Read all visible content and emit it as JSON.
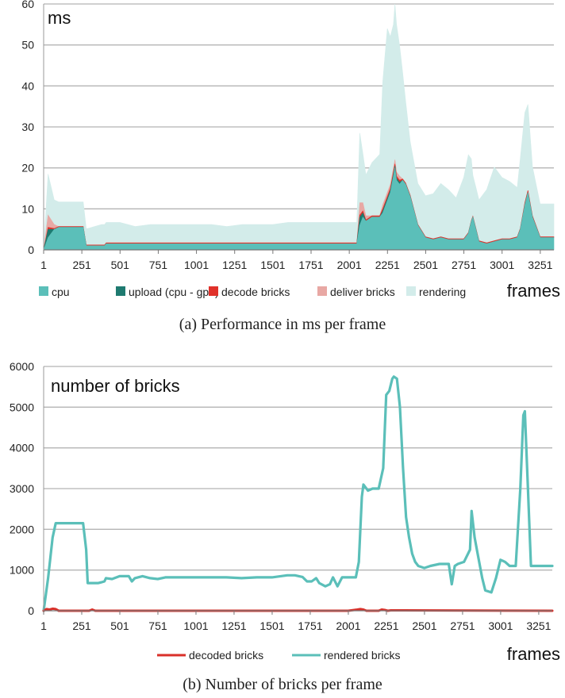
{
  "chart_data": [
    {
      "type": "area",
      "stacked": true,
      "inner_label": "ms",
      "xlabel": "frames",
      "caption": "(a) Performance in ms per frame",
      "x_ticks": [
        "1",
        "251",
        "501",
        "751",
        "1001",
        "1251",
        "1501",
        "1751",
        "2001",
        "2251",
        "2501",
        "2751",
        "3001",
        "3251"
      ],
      "y_ticks": [
        "0",
        "10",
        "20",
        "30",
        "40",
        "50",
        "60"
      ],
      "xlim": [
        1,
        3340
      ],
      "ylim": [
        0,
        60
      ],
      "grid": true,
      "legend_position": "bottom",
      "x": [
        1,
        30,
        70,
        100,
        150,
        200,
        260,
        280,
        290,
        380,
        400,
        410,
        500,
        600,
        700,
        800,
        900,
        1000,
        1100,
        1200,
        1300,
        1400,
        1500,
        1600,
        1700,
        1800,
        1900,
        2000,
        2050,
        2070,
        2090,
        2110,
        2150,
        2200,
        2220,
        2250,
        2270,
        2290,
        2300,
        2310,
        2330,
        2350,
        2370,
        2400,
        2450,
        2500,
        2550,
        2600,
        2650,
        2700,
        2750,
        2780,
        2800,
        2810,
        2830,
        2850,
        2900,
        2950,
        3000,
        3050,
        3100,
        3120,
        3150,
        3170,
        3200,
        3250,
        3300,
        3340
      ],
      "series": [
        {
          "name": "cpu",
          "color": "#5bbfb9",
          "values": [
            0,
            3,
            5,
            5.5,
            5.5,
            5.5,
            5.5,
            1,
            1,
            1,
            1,
            1.5,
            1.5,
            1.5,
            1.5,
            1.5,
            1.5,
            1.5,
            1.5,
            1.5,
            1.5,
            1.5,
            1.5,
            1.5,
            1.5,
            1.5,
            1.5,
            1.5,
            1.5,
            6,
            8,
            7,
            8,
            8,
            9,
            12,
            14,
            18,
            20,
            17,
            16,
            17,
            16,
            13,
            6,
            3,
            2.5,
            3,
            2.5,
            2.5,
            2.5,
            4,
            7,
            8,
            5,
            2,
            1.5,
            2,
            2.5,
            2.5,
            3,
            5,
            11,
            14,
            8,
            3,
            3,
            3
          ]
        },
        {
          "name": "upload (cpu - gpu)",
          "color": "#1e7a70",
          "values": [
            0,
            2,
            0,
            0,
            0,
            0,
            0,
            0,
            0,
            0,
            0,
            0,
            0,
            0,
            0,
            0,
            0,
            0,
            0,
            0,
            0,
            0,
            0,
            0,
            0,
            0,
            0,
            0,
            0,
            2,
            1,
            0,
            0,
            0,
            0.5,
            0.5,
            0.5,
            0.5,
            0.5,
            0.5,
            0.5,
            0,
            0,
            0,
            0,
            0,
            0,
            0,
            0,
            0,
            0,
            0,
            0,
            0,
            0,
            0,
            0,
            0,
            0,
            0,
            0,
            0,
            0,
            0,
            0,
            0,
            0,
            0
          ]
        },
        {
          "name": "decode bricks",
          "color": "#e0312a",
          "values": [
            0,
            0.5,
            0.2,
            0.2,
            0.2,
            0.2,
            0.2,
            0.2,
            0.2,
            0.2,
            0.2,
            0.2,
            0.2,
            0.2,
            0.2,
            0.2,
            0.2,
            0.2,
            0.2,
            0.2,
            0.2,
            0.2,
            0.2,
            0.2,
            0.2,
            0.2,
            0.2,
            0.2,
            0.2,
            0.5,
            0.5,
            0.3,
            0.3,
            0.3,
            0.5,
            0.5,
            0.5,
            0.5,
            0.5,
            0.5,
            0.5,
            0.3,
            0.3,
            0.3,
            0.2,
            0.2,
            0.2,
            0.2,
            0.2,
            0.2,
            0.2,
            0.2,
            0.2,
            0.2,
            0.2,
            0.2,
            0.2,
            0.2,
            0.2,
            0.2,
            0.2,
            0.2,
            0.5,
            0.5,
            0.3,
            0.2,
            0.2,
            0.2
          ]
        },
        {
          "name": "deliver bricks",
          "color": "#e8a8a4",
          "values": [
            0,
            3,
            1,
            0,
            0,
            0,
            0,
            0,
            0,
            0,
            0,
            0,
            0,
            0,
            0,
            0,
            0,
            0,
            0,
            0,
            0,
            0,
            0,
            0,
            0,
            0,
            0,
            0,
            0,
            3,
            2,
            1,
            0,
            0,
            1,
            1,
            1,
            1,
            1,
            1,
            1,
            0,
            0,
            0,
            0,
            0,
            0,
            0,
            0,
            0,
            0,
            0,
            0,
            0,
            0,
            0,
            0,
            0,
            0,
            0,
            0,
            0,
            0,
            0,
            0,
            0,
            0,
            0
          ]
        },
        {
          "name": "rendering",
          "color": "#d3ecea",
          "values": [
            0,
            10,
            6,
            6,
            6,
            6,
            6,
            4,
            4,
            5,
            5,
            5,
            5,
            4,
            4.5,
            4.5,
            4.5,
            4.5,
            4.5,
            4,
            4.5,
            4.5,
            4.5,
            5,
            5,
            5,
            5,
            5,
            5,
            17,
            12,
            10,
            13,
            15,
            30,
            40,
            36,
            35,
            38,
            36,
            32,
            26,
            20,
            13,
            10,
            10,
            11,
            13,
            12,
            10,
            15,
            19,
            15,
            10,
            10,
            10,
            13,
            18,
            15,
            14,
            12,
            17,
            22,
            21,
            12,
            8,
            8,
            8
          ]
        }
      ]
    },
    {
      "type": "line",
      "inner_label": "number of bricks",
      "xlabel": "frames",
      "caption": "(b) Number of bricks per frame",
      "x_ticks": [
        "1",
        "251",
        "501",
        "751",
        "1001",
        "1251",
        "1501",
        "1751",
        "2001",
        "2251",
        "2501",
        "2751",
        "3001",
        "3251"
      ],
      "y_ticks": [
        "0",
        "1000",
        "2000",
        "3000",
        "4000",
        "5000",
        "6000"
      ],
      "xlim": [
        1,
        3340
      ],
      "ylim": [
        0,
        6000
      ],
      "grid": true,
      "legend_position": "bottom",
      "series": [
        {
          "name": "decoded bricks",
          "color": "#d9302a",
          "x": [
            1,
            20,
            40,
            60,
            80,
            100,
            300,
            320,
            340,
            1000,
            2000,
            2060,
            2080,
            2100,
            2120,
            2200,
            2220,
            2240,
            2260,
            2280,
            3340
          ],
          "y": [
            0,
            40,
            30,
            50,
            40,
            0,
            0,
            30,
            0,
            0,
            0,
            30,
            40,
            30,
            0,
            0,
            30,
            20,
            0,
            10,
            0
          ]
        },
        {
          "name": "rendered bricks",
          "color": "#5bbfb9",
          "x": [
            1,
            30,
            60,
            80,
            100,
            150,
            200,
            260,
            280,
            290,
            330,
            360,
            380,
            400,
            410,
            450,
            500,
            560,
            580,
            600,
            650,
            700,
            750,
            800,
            900,
            1000,
            1100,
            1200,
            1300,
            1400,
            1500,
            1600,
            1650,
            1700,
            1730,
            1760,
            1790,
            1810,
            1850,
            1880,
            1900,
            1930,
            1960,
            2000,
            2050,
            2070,
            2090,
            2100,
            2130,
            2160,
            2200,
            2230,
            2250,
            2270,
            2290,
            2300,
            2320,
            2340,
            2360,
            2380,
            2400,
            2420,
            2440,
            2460,
            2500,
            2540,
            2600,
            2660,
            2680,
            2700,
            2720,
            2760,
            2800,
            2810,
            2830,
            2850,
            2880,
            2900,
            2940,
            2970,
            3000,
            3030,
            3060,
            3100,
            3130,
            3150,
            3160,
            3180,
            3200,
            3230,
            3250,
            3300,
            3340
          ],
          "y": [
            0,
            800,
            1800,
            2150,
            2150,
            2150,
            2150,
            2150,
            1500,
            680,
            680,
            680,
            700,
            720,
            800,
            780,
            850,
            850,
            720,
            800,
            850,
            800,
            780,
            820,
            820,
            820,
            820,
            820,
            800,
            820,
            820,
            870,
            870,
            830,
            720,
            720,
            800,
            680,
            600,
            650,
            820,
            600,
            820,
            820,
            820,
            1200,
            2800,
            3100,
            2950,
            3000,
            3000,
            3500,
            5300,
            5400,
            5700,
            5750,
            5700,
            5000,
            3500,
            2300,
            1800,
            1400,
            1200,
            1100,
            1050,
            1100,
            1150,
            1150,
            650,
            1100,
            1150,
            1200,
            1500,
            2450,
            1800,
            1400,
            800,
            500,
            450,
            800,
            1250,
            1200,
            1100,
            1100,
            3000,
            4800,
            4900,
            3000,
            1100,
            1100,
            1100,
            1100,
            1100
          ]
        }
      ]
    }
  ]
}
